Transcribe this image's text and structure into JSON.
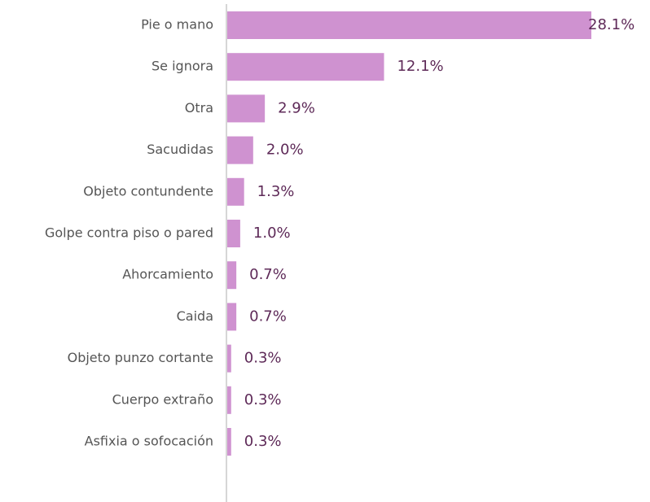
{
  "chart_data": {
    "type": "bar",
    "orientation": "horizontal",
    "categories": [
      "Pie o mano",
      "Se ignora",
      "Otra",
      "Sacudidas",
      "Objeto contundente",
      "Golpe contra piso o pared",
      "Ahorcamiento",
      "Caida",
      "Objeto punzo cortante",
      "Cuerpo extraño",
      "Asfixia o sofocación"
    ],
    "values": [
      28.1,
      12.1,
      2.9,
      2.0,
      1.3,
      1.0,
      0.7,
      0.7,
      0.3,
      0.3,
      0.3
    ],
    "value_labels": [
      "28.1%",
      "12.1%",
      "2.9%",
      "2.0%",
      "1.3%",
      "1.0%",
      "0.7%",
      "0.7%",
      "0.3%",
      "0.3%",
      "0.3%"
    ],
    "color": "#cf92d0"
  }
}
